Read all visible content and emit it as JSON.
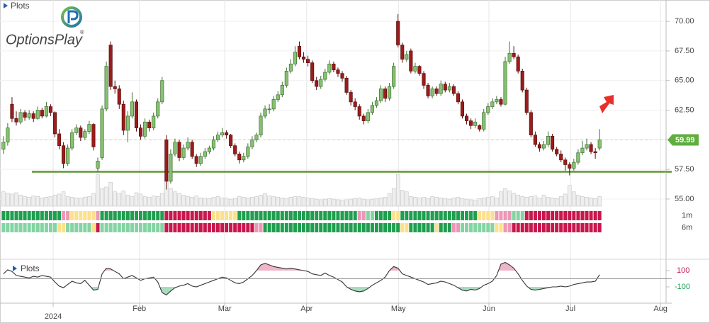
{
  "chart_data": {
    "type": "candlestick",
    "title": "Plots",
    "logo": "OptionsPlay",
    "logo_mark": "®",
    "xlim": [
      -0.8,
      154.5
    ],
    "xticks": [
      {
        "value": 11.6,
        "label": "2024"
      },
      {
        "value": 31.7,
        "label": "Feb"
      },
      {
        "value": 51.6,
        "label": "Mar"
      },
      {
        "value": 70.7,
        "label": "Apr"
      },
      {
        "value": 92.1,
        "label": "May"
      },
      {
        "value": 113.2,
        "label": "Jun"
      },
      {
        "value": 132.2,
        "label": "Jul"
      },
      {
        "value": 153.2,
        "label": "Aug"
      }
    ],
    "ylim": [
      54.4,
      71.8
    ],
    "yticks": [
      {
        "value": 55,
        "label": "55.00"
      },
      {
        "value": 57.5,
        "label": "57.50"
      },
      {
        "value": 60,
        "label": "60.00"
      },
      {
        "value": 62.5,
        "label": "62.50"
      },
      {
        "value": 65,
        "label": "65.00"
      },
      {
        "value": 67.5,
        "label": "67.50"
      },
      {
        "value": 70,
        "label": "70.00"
      }
    ],
    "grid": true,
    "up_color": "#86c270",
    "down_color": "#9b1c1c",
    "support": 57.3,
    "support_color": "#5f9630",
    "price_tag_color": "#5fae3e",
    "candles": [
      [
        59.2,
        60.3,
        58.8,
        59.8
      ],
      [
        59.8,
        61.4,
        59.5,
        61.0
      ],
      [
        63.0,
        63.6,
        61.5,
        61.8
      ],
      [
        61.8,
        62.4,
        61.2,
        61.5
      ],
      [
        61.5,
        62.6,
        61.3,
        62.3
      ],
      [
        62.3,
        62.5,
        61.6,
        61.9
      ],
      [
        61.9,
        62.5,
        61.7,
        62.2
      ],
      [
        62.2,
        62.4,
        61.5,
        61.8
      ],
      [
        61.8,
        62.8,
        61.7,
        62.5
      ],
      [
        62.5,
        62.7,
        61.8,
        62.0
      ],
      [
        62.0,
        63.2,
        61.9,
        62.8
      ],
      [
        62.8,
        63.0,
        62.0,
        62.3
      ],
      [
        62.3,
        62.4,
        60.2,
        60.5
      ],
      [
        60.5,
        60.9,
        59.2,
        59.5
      ],
      [
        59.5,
        59.8,
        57.6,
        58.0
      ],
      [
        58.0,
        59.6,
        57.8,
        59.3
      ],
      [
        59.3,
        60.9,
        59.1,
        60.6
      ],
      [
        60.6,
        61.3,
        60.4,
        61.0
      ],
      [
        61.0,
        61.2,
        59.9,
        60.2
      ],
      [
        60.2,
        60.9,
        60.0,
        60.7
      ],
      [
        60.7,
        61.6,
        60.5,
        61.3
      ],
      [
        61.3,
        61.4,
        59.1,
        59.4
      ],
      [
        57.6,
        58.5,
        57.3,
        58.2
      ],
      [
        58.5,
        62.9,
        58.3,
        62.6
      ],
      [
        62.6,
        66.6,
        62.4,
        66.2
      ],
      [
        68.0,
        68.3,
        64.2,
        64.5
      ],
      [
        64.5,
        65.0,
        63.9,
        64.3
      ],
      [
        64.3,
        64.6,
        62.6,
        63.0
      ],
      [
        63.0,
        63.3,
        60.4,
        60.8
      ],
      [
        60.8,
        62.4,
        59.8,
        62.0
      ],
      [
        62.0,
        64.0,
        61.8,
        63.2
      ],
      [
        63.2,
        63.4,
        60.7,
        61.0
      ],
      [
        61.0,
        61.3,
        60.0,
        60.3
      ],
      [
        60.3,
        61.8,
        60.1,
        61.5
      ],
      [
        61.5,
        61.7,
        60.7,
        61.0
      ],
      [
        61.0,
        62.3,
        60.8,
        62.0
      ],
      [
        62.0,
        63.5,
        61.8,
        63.2
      ],
      [
        63.2,
        65.3,
        63.0,
        65.0
      ],
      [
        60.0,
        60.4,
        55.8,
        56.5
      ],
      [
        56.5,
        59.2,
        56.3,
        58.8
      ],
      [
        58.8,
        60.1,
        58.6,
        59.8
      ],
      [
        59.8,
        60.0,
        58.2,
        58.5
      ],
      [
        58.5,
        59.6,
        58.3,
        59.3
      ],
      [
        59.3,
        60.2,
        59.1,
        59.8
      ],
      [
        59.8,
        60.0,
        58.4,
        58.6
      ],
      [
        58.6,
        58.8,
        57.7,
        58.0
      ],
      [
        58.0,
        58.9,
        57.8,
        58.6
      ],
      [
        58.6,
        59.3,
        58.4,
        59.0
      ],
      [
        59.0,
        59.5,
        58.8,
        59.3
      ],
      [
        59.3,
        60.3,
        59.1,
        60.0
      ],
      [
        60.0,
        60.7,
        59.8,
        60.4
      ],
      [
        60.4,
        61.0,
        60.2,
        60.6
      ],
      [
        60.6,
        60.8,
        60.1,
        60.4
      ],
      [
        60.4,
        60.5,
        59.3,
        59.5
      ],
      [
        59.5,
        59.7,
        58.6,
        58.8
      ],
      [
        58.8,
        59.0,
        58.0,
        58.3
      ],
      [
        58.3,
        58.9,
        58.1,
        58.6
      ],
      [
        58.6,
        59.7,
        58.4,
        59.4
      ],
      [
        59.4,
        60.3,
        59.2,
        60.0
      ],
      [
        60.0,
        60.6,
        59.8,
        60.4
      ],
      [
        60.4,
        62.3,
        60.2,
        62.0
      ],
      [
        62.0,
        62.9,
        61.8,
        62.6
      ],
      [
        62.6,
        63.0,
        62.2,
        62.6
      ],
      [
        62.6,
        63.7,
        62.4,
        63.4
      ],
      [
        63.4,
        64.1,
        63.2,
        63.8
      ],
      [
        63.8,
        64.9,
        63.6,
        64.6
      ],
      [
        64.6,
        66.1,
        64.4,
        65.8
      ],
      [
        65.8,
        66.8,
        65.6,
        66.4
      ],
      [
        66.4,
        67.9,
        66.2,
        67.4
      ],
      [
        67.9,
        68.3,
        66.8,
        67.0
      ],
      [
        67.0,
        67.4,
        66.5,
        66.8
      ],
      [
        66.8,
        67.1,
        66.2,
        66.5
      ],
      [
        66.5,
        66.7,
        64.8,
        65.0
      ],
      [
        65.0,
        65.3,
        64.2,
        64.5
      ],
      [
        64.5,
        65.4,
        64.3,
        65.1
      ],
      [
        65.1,
        66.0,
        64.9,
        65.7
      ],
      [
        65.7,
        66.7,
        65.5,
        66.4
      ],
      [
        66.4,
        66.6,
        65.7,
        65.9
      ],
      [
        65.9,
        66.1,
        65.3,
        65.6
      ],
      [
        65.6,
        65.8,
        64.9,
        65.2
      ],
      [
        65.2,
        65.4,
        63.8,
        64.0
      ],
      [
        64.0,
        64.2,
        62.9,
        63.2
      ],
      [
        63.2,
        63.5,
        62.5,
        62.8
      ],
      [
        62.8,
        63.0,
        61.7,
        62.0
      ],
      [
        62.0,
        62.2,
        61.3,
        61.6
      ],
      [
        61.6,
        62.6,
        61.4,
        62.3
      ],
      [
        62.3,
        63.2,
        62.1,
        62.9
      ],
      [
        62.9,
        63.6,
        62.7,
        63.3
      ],
      [
        63.3,
        64.6,
        63.1,
        64.3
      ],
      [
        64.3,
        64.5,
        63.2,
        63.5
      ],
      [
        63.5,
        64.8,
        63.3,
        64.5
      ],
      [
        64.5,
        66.5,
        64.3,
        66.2
      ],
      [
        70.0,
        70.6,
        67.8,
        68.0
      ],
      [
        68.0,
        68.2,
        66.5,
        66.8
      ],
      [
        66.8,
        67.5,
        66.6,
        67.2
      ],
      [
        67.5,
        67.7,
        65.6,
        65.8
      ],
      [
        65.8,
        66.5,
        65.6,
        66.2
      ],
      [
        66.2,
        66.3,
        65.4,
        65.6
      ],
      [
        65.6,
        65.8,
        64.3,
        64.6
      ],
      [
        64.6,
        64.8,
        63.5,
        63.7
      ],
      [
        63.7,
        64.5,
        63.5,
        64.3
      ],
      [
        64.3,
        64.5,
        63.7,
        63.9
      ],
      [
        63.9,
        65.0,
        63.7,
        64.7
      ],
      [
        64.7,
        64.9,
        64.0,
        64.2
      ],
      [
        64.2,
        64.8,
        64.0,
        64.5
      ],
      [
        64.5,
        64.7,
        63.7,
        63.9
      ],
      [
        63.9,
        64.1,
        63.0,
        63.2
      ],
      [
        63.2,
        63.4,
        61.8,
        62.0
      ],
      [
        62.0,
        62.2,
        61.3,
        61.6
      ],
      [
        61.6,
        61.8,
        60.9,
        61.2
      ],
      [
        61.2,
        61.8,
        61.0,
        61.5
      ],
      [
        61.2,
        61.3,
        60.7,
        60.9
      ],
      [
        60.9,
        62.6,
        60.7,
        62.3
      ],
      [
        62.3,
        63.1,
        62.1,
        62.8
      ],
      [
        62.8,
        63.5,
        62.6,
        63.2
      ],
      [
        63.2,
        63.7,
        63.0,
        63.4
      ],
      [
        63.4,
        63.6,
        62.8,
        63.0
      ],
      [
        63.0,
        67.0,
        62.9,
        66.6
      ],
      [
        66.6,
        68.3,
        66.4,
        67.3
      ],
      [
        67.3,
        67.9,
        66.8,
        67.0
      ],
      [
        67.0,
        67.2,
        65.6,
        65.8
      ],
      [
        65.8,
        66.0,
        64.0,
        64.2
      ],
      [
        64.2,
        64.4,
        62.1,
        62.3
      ],
      [
        62.3,
        62.5,
        60.2,
        60.4
      ],
      [
        60.4,
        60.7,
        59.4,
        59.6
      ],
      [
        59.6,
        59.8,
        59.0,
        59.3
      ],
      [
        59.3,
        59.9,
        59.1,
        59.6
      ],
      [
        59.6,
        60.7,
        59.4,
        60.3
      ],
      [
        60.3,
        60.5,
        59.0,
        59.2
      ],
      [
        59.2,
        59.4,
        58.6,
        58.8
      ],
      [
        58.8,
        59.1,
        58.1,
        58.3
      ],
      [
        58.3,
        58.5,
        57.4,
        57.9
      ],
      [
        57.9,
        58.1,
        57.0,
        57.6
      ],
      [
        57.6,
        58.4,
        57.4,
        58.1
      ],
      [
        58.1,
        59.2,
        57.9,
        58.9
      ],
      [
        58.9,
        59.9,
        58.7,
        59.3
      ],
      [
        59.3,
        60.1,
        59.1,
        59.6
      ],
      [
        59.6,
        59.8,
        58.8,
        59.0
      ],
      [
        59.0,
        59.3,
        58.4,
        58.9
      ],
      [
        59.3,
        60.9,
        59.1,
        59.99
      ]
    ],
    "volume_lim": [
      0,
      100
    ],
    "volume": [
      45,
      40,
      38,
      42,
      35,
      30,
      28,
      32,
      30,
      26,
      28,
      30,
      35,
      38,
      45,
      30,
      28,
      26,
      25,
      28,
      30,
      40,
      100,
      55,
      60,
      75,
      45,
      40,
      48,
      35,
      30,
      42,
      38,
      30,
      28,
      32,
      30,
      40,
      80,
      55,
      45,
      40,
      35,
      30,
      28,
      32,
      26,
      25,
      24,
      28,
      30,
      26,
      25,
      22,
      24,
      30,
      28,
      26,
      28,
      30,
      35,
      40,
      32,
      30,
      28,
      26,
      24,
      28,
      30,
      30,
      28,
      26,
      24,
      22,
      20,
      22,
      24,
      22,
      20,
      18,
      20,
      22,
      24,
      26,
      22,
      20,
      22,
      24,
      26,
      28,
      40,
      55,
      100,
      50,
      45,
      30,
      28,
      26,
      28,
      24,
      30,
      28,
      26,
      24,
      22,
      26,
      28,
      24,
      22,
      20,
      18,
      24,
      26,
      28,
      30,
      26,
      45,
      55,
      48,
      40,
      35,
      30,
      28,
      30,
      32,
      26,
      35,
      28,
      26,
      24,
      30,
      38,
      65,
      45,
      35,
      30,
      28,
      26,
      24,
      30
    ],
    "trend_colors": {
      "G": "#1f9e4f",
      "L": "#84d4a3",
      "Y": "#fde08c",
      "P": "#ec97b6",
      "R": "#c8174d"
    },
    "trend": [
      {
        "name": "1m",
        "states": "GGGGGGGGGGGGGGPPYYYYYYPGGGGGGGGGGGGGGGRRRRRRRRRRRYYYYYYGGGGGGGGGGGGGGGGGGGGGGGGGGGGPPLLGGGGYYGGGGGGGGGGGGGGGGGGYYYYPPPPLLLRRRRRRRRRRRRRRRRRR"
      },
      {
        "name": "6m",
        "states": "LLLLLLLLLLLLLYYLLLLLLYRLLLLLLLLLLLLLLLRRRRRRRRRRRRRRRRRRRRRPPGGGGGGGGGGGGGGGGGGGGGGGGGGGGGGGGYYGGGGGGYGGGPPLLLLLLLLYYPPRRRRRRRRRRRRRRRRRRRRR"
      }
    ],
    "oscillator": {
      "name": "Plots",
      "ylim": [
        -300,
        222
      ],
      "yticks": [
        100,
        -100
      ],
      "tick_colors": [
        "#c2185b",
        "#1e9e55"
      ],
      "fill_colors": [
        "#eeb4c8",
        "#a8dcbf"
      ],
      "color": "#333333",
      "values": [
        60,
        110,
        90,
        40,
        30,
        20,
        10,
        30,
        20,
        40,
        30,
        20,
        -40,
        -90,
        -110,
        -70,
        -30,
        -50,
        -60,
        -20,
        -80,
        -140,
        -130,
        60,
        130,
        120,
        90,
        60,
        0,
        20,
        40,
        10,
        -20,
        0,
        10,
        20,
        -40,
        -170,
        -200,
        -150,
        -110,
        -90,
        -80,
        -60,
        -90,
        -100,
        -80,
        -60,
        -40,
        -20,
        0,
        20,
        10,
        -20,
        -50,
        -60,
        -40,
        0,
        40,
        100,
        170,
        190,
        170,
        150,
        140,
        130,
        120,
        130,
        120,
        110,
        100,
        90,
        60,
        50,
        40,
        70,
        40,
        20,
        -10,
        -40,
        -100,
        -130,
        -150,
        -160,
        -150,
        -120,
        -80,
        -50,
        -20,
        20,
        100,
        150,
        130,
        60,
        40,
        20,
        0,
        -20,
        -40,
        -70,
        -60,
        -50,
        -30,
        -40,
        -60,
        -80,
        -110,
        -140,
        -150,
        -130,
        -140,
        -120,
        -80,
        -60,
        -30,
        40,
        180,
        200,
        170,
        130,
        60,
        -20,
        -90,
        -130,
        -140,
        -130,
        -120,
        -110,
        -100,
        -100,
        -90,
        -100,
        -90,
        -70,
        -60,
        -50,
        -40,
        -40,
        -30,
        50
      ]
    }
  }
}
